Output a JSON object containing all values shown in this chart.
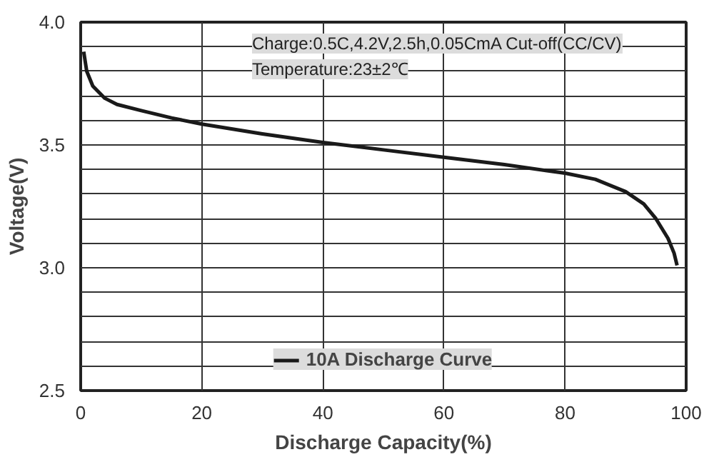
{
  "chart_data": {
    "type": "line",
    "xlabel": "Discharge Capacity(%)",
    "ylabel": "Voltage(V)",
    "annotations": [
      "Charge:0.5C,4.2V,2.5h,0.05CmA Cut-off(CC/CV)",
      "Temperature:23±2℃"
    ],
    "series": [
      {
        "name": "10A Discharge Curve",
        "color": "#1a1a1a",
        "x": [
          0.5,
          1,
          2,
          4,
          6,
          10,
          15,
          20,
          30,
          40,
          50,
          60,
          70,
          80,
          85,
          90,
          93,
          95,
          97,
          98,
          98.5
        ],
        "values": [
          3.88,
          3.8,
          3.74,
          3.69,
          3.665,
          3.64,
          3.61,
          3.585,
          3.545,
          3.51,
          3.48,
          3.45,
          3.42,
          3.385,
          3.36,
          3.31,
          3.26,
          3.2,
          3.12,
          3.06,
          3.01
        ]
      }
    ],
    "xlim": [
      0,
      100
    ],
    "ylim": [
      2.5,
      4.0
    ],
    "xticks": [
      0,
      20,
      40,
      60,
      80,
      100
    ],
    "yticks": [
      2.5,
      {
        "value": 2.6,
        "label": null
      },
      {
        "value": 2.7,
        "label": null
      },
      {
        "value": 2.8,
        "label": null
      },
      {
        "value": 2.9,
        "label": null
      },
      {
        "value": 3.0,
        "label": "3.0"
      },
      {
        "value": 3.1,
        "label": null
      },
      {
        "value": 3.2,
        "label": null
      },
      {
        "value": 3.3,
        "label": null
      },
      {
        "value": 3.4,
        "label": null
      },
      3.5,
      {
        "value": 3.6,
        "label": null
      },
      {
        "value": 3.7,
        "label": null
      },
      {
        "value": 3.8,
        "label": null
      },
      {
        "value": 3.9,
        "label": null
      },
      {
        "value": 4.0,
        "label": "4.0"
      }
    ],
    "grid": true,
    "legend": "bottom",
    "line_style": "solid",
    "marker": "none"
  }
}
